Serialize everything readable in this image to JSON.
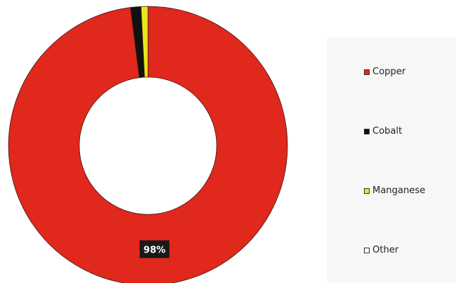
{
  "chart_data": {
    "type": "pie",
    "style": "donut",
    "title": "",
    "categories": [
      "Copper",
      "Cobalt",
      "Manganese",
      "Other"
    ],
    "values": [
      98,
      1.2,
      0.8,
      0
    ],
    "colors": [
      "#e0281c",
      "#111111",
      "#e8e81c",
      "#ffffff"
    ],
    "data_labels": [
      {
        "category": "Copper",
        "text": "98%"
      }
    ],
    "legend": {
      "position": "right",
      "entries": [
        "Copper",
        "Cobalt",
        "Manganese",
        "Other"
      ]
    }
  }
}
